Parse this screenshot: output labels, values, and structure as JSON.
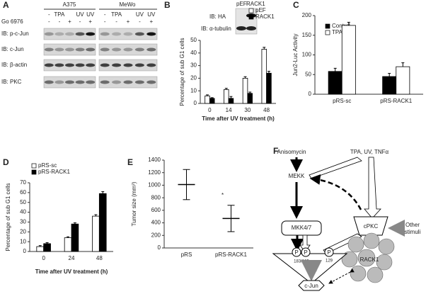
{
  "blot": {
    "panel": "A",
    "cell_lines": [
      "A375",
      "MeWo"
    ],
    "treatment": [
      "-",
      "TPA",
      "UV",
      "UV"
    ],
    "inhibitor": "Go 6976",
    "inhibitor_lanes": [
      "-",
      "-",
      "+",
      "-",
      "+"
    ],
    "rows": [
      "IB: p-c-Jun",
      "IB: c-Jun",
      "IB: β-actin",
      "IB: PKC"
    ]
  },
  "chart_data": [
    {
      "type": "bar",
      "panel": "B",
      "ylabel": "Percentage of sub G1 cells",
      "xlabel": "Time after UV treatment (h)",
      "categories": [
        "0",
        "14",
        "30",
        "48"
      ],
      "series": [
        {
          "name": "pEF",
          "color": "#ffffff",
          "values": [
            6,
            11,
            20,
            43
          ],
          "errors": [
            0.8,
            1,
            1.2,
            1.5
          ]
        },
        {
          "name": "RACK1",
          "color": "#000000",
          "values": [
            4,
            4,
            8,
            24
          ],
          "errors": [
            0.6,
            1.5,
            1,
            1.5
          ]
        }
      ],
      "ylim": [
        0,
        50
      ],
      "yticks": [
        0,
        10,
        20,
        30,
        40,
        50
      ],
      "legend": "upper right",
      "inset": {
        "lanes": [
          "pEF",
          "RACK1"
        ],
        "rows": [
          "IB: HA",
          "IB: α-tubulin"
        ]
      }
    },
    {
      "type": "bar",
      "panel": "C",
      "ylabel": "Jun2-Luc Activity",
      "categories": [
        "pRS-sc",
        "pRS-RACK1"
      ],
      "series": [
        {
          "name": "Control",
          "color": "#000000",
          "values": [
            58,
            45
          ],
          "errors": [
            8,
            8
          ]
        },
        {
          "name": "TPA",
          "color": "#ffffff",
          "values": [
            175,
            70
          ],
          "errors": [
            8,
            10
          ]
        }
      ],
      "ylim": [
        0,
        200
      ],
      "yticks": [
        0,
        50,
        100,
        150,
        200
      ],
      "legend": "upper left"
    },
    {
      "type": "bar",
      "panel": "D",
      "ylabel": "Percentage of sub G1 cells",
      "xlabel": "Time after UV treatment (h)",
      "categories": [
        "0",
        "24",
        "48"
      ],
      "series": [
        {
          "name": "pRS-sc",
          "color": "#ffffff",
          "values": [
            5,
            14,
            36
          ],
          "errors": [
            1,
            1,
            1.5
          ]
        },
        {
          "name": "pRS-RACK1",
          "color": "#000000",
          "values": [
            8,
            28,
            59
          ],
          "errors": [
            1,
            1.2,
            2
          ]
        }
      ],
      "ylim": [
        0,
        70
      ],
      "yticks": [
        0,
        10,
        20,
        30,
        40,
        50,
        60,
        70
      ],
      "legend": "upper left"
    },
    {
      "type": "errorbar",
      "panel": "E",
      "ylabel": "Tumor size (mm³)",
      "categories": [
        "pRS",
        "pRS-RACK1"
      ],
      "values": [
        1010,
        470
      ],
      "errors": [
        240,
        210
      ],
      "annotation": "*",
      "ylim": [
        0,
        1400
      ],
      "yticks": [
        0,
        200,
        400,
        600,
        800,
        1000,
        1200,
        1400
      ]
    }
  ],
  "diagram": {
    "panel": "F",
    "nodes": {
      "anisomycin": "Anisomycin",
      "stimuli": "TPA, UV, TNFα",
      "mekk": "MEKK",
      "mkk": "MKK4/7",
      "cpkc": "cPKC",
      "other": [
        "Other",
        "stimuli"
      ],
      "p": "P",
      "site1": "183/185",
      "site2": "129",
      "rack1": "RACK1",
      "jnk": "JNK",
      "cjun": "c-Jun"
    }
  }
}
